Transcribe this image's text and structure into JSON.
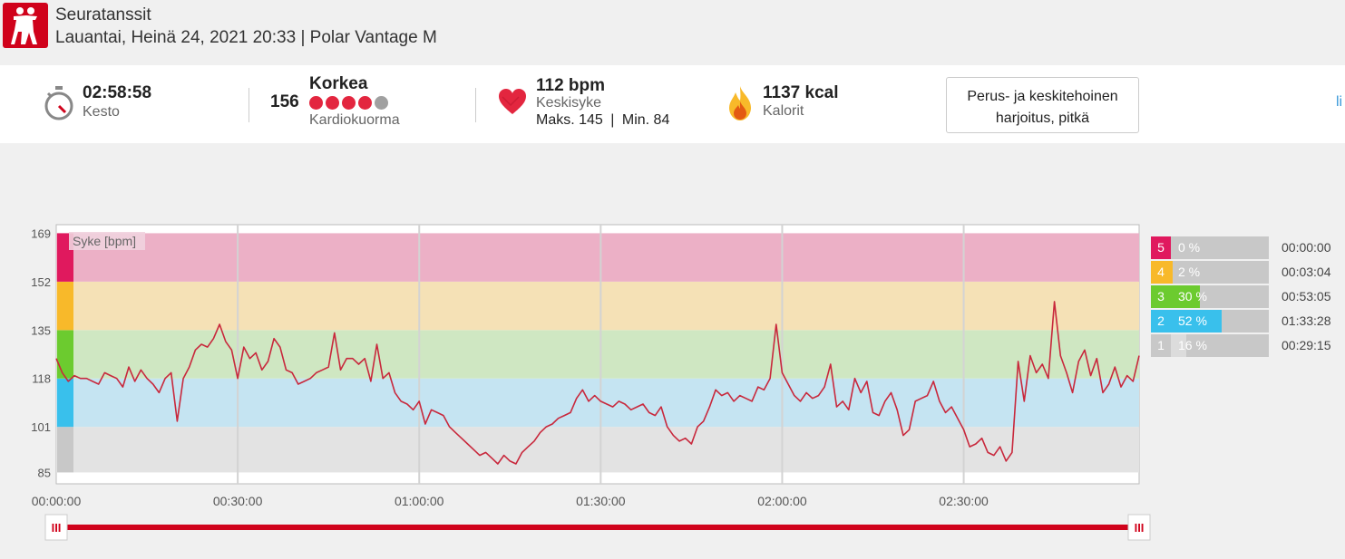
{
  "header": {
    "title": "Seuratanssit",
    "subtitle": "Lauantai, Heinä 24, 2021 20:33 | Polar Vantage M"
  },
  "summary": {
    "duration": {
      "value": "02:58:58",
      "label": "Kesto"
    },
    "load": {
      "number": "156",
      "level": "Korkea",
      "label": "Kardiokuorma",
      "dots_filled": 4,
      "dots_total": 5
    },
    "heart_rate": {
      "value": "112 bpm",
      "label": "Keskisyke",
      "max": "Maks. 145",
      "sep": "|",
      "min": "Min. 84"
    },
    "calories": {
      "value": "1137 kcal",
      "label": "Kalorit"
    },
    "training_benefit": "Perus- ja keskitehoinen harjoitus, pitkä",
    "edge_text": "li"
  },
  "colors": {
    "accent": "#d0021b",
    "line": "#c8283c",
    "zone5": "#e0195e",
    "zone4": "#f8b92a",
    "zone3": "#6ccb2f",
    "zone2": "#39c0ec",
    "zone1": "#c8c8c8"
  },
  "chart_data": {
    "type": "line",
    "title": "",
    "series_label": "Syke [bpm]",
    "x_ticks": [
      "00:00:00",
      "00:30:00",
      "01:00:00",
      "01:30:00",
      "02:00:00",
      "02:30:00"
    ],
    "x_tick_minutes": [
      0,
      30,
      60,
      90,
      120,
      150
    ],
    "xlim_minutes": [
      0,
      179
    ],
    "y_ticks": [
      85,
      101,
      118,
      135,
      152,
      169
    ],
    "ylim": [
      81,
      172
    ],
    "zone_bounds": [
      [
        85,
        101
      ],
      [
        101,
        118
      ],
      [
        118,
        135
      ],
      [
        135,
        152
      ],
      [
        152,
        169
      ]
    ],
    "series": [
      {
        "x": [
          0,
          1,
          2,
          3,
          4,
          5,
          6,
          7,
          8,
          9,
          10,
          11,
          12,
          13,
          14,
          15,
          16,
          17,
          18,
          19,
          20,
          21,
          22,
          23,
          24,
          25,
          26,
          27,
          28,
          29,
          30,
          31,
          32,
          33,
          34,
          35,
          36,
          37,
          38,
          39,
          40,
          41,
          42,
          43,
          44,
          45,
          46,
          47,
          48,
          49,
          50,
          51,
          52,
          53,
          54,
          55,
          56,
          57,
          58,
          59,
          60,
          61,
          62,
          63,
          64,
          65,
          66,
          67,
          68,
          69,
          70,
          71,
          72,
          73,
          74,
          75,
          76,
          77,
          78,
          79,
          80,
          81,
          82,
          83,
          84,
          85,
          86,
          87,
          88,
          89,
          90,
          91,
          92,
          93,
          94,
          95,
          96,
          97,
          98,
          99,
          100,
          101,
          102,
          103,
          104,
          105,
          106,
          107,
          108,
          109,
          110,
          111,
          112,
          113,
          114,
          115,
          116,
          117,
          118,
          119,
          120,
          121,
          122,
          123,
          124,
          125,
          126,
          127,
          128,
          129,
          130,
          131,
          132,
          133,
          134,
          135,
          136,
          137,
          138,
          139,
          140,
          141,
          142,
          143,
          144,
          145,
          146,
          147,
          148,
          149,
          150,
          151,
          152,
          153,
          154,
          155,
          156,
          157,
          158,
          159,
          160,
          161,
          162,
          163,
          164,
          165,
          166,
          167,
          168,
          169,
          170,
          171,
          172,
          173,
          174,
          175,
          176,
          177,
          178,
          179
        ],
        "y": [
          125,
          120,
          117,
          119,
          118,
          118,
          117,
          116,
          120,
          119,
          118,
          115,
          122,
          117,
          121,
          118,
          116,
          113,
          118,
          120,
          103,
          118,
          122,
          128,
          130,
          129,
          132,
          137,
          131,
          128,
          118,
          129,
          125,
          127,
          121,
          124,
          132,
          129,
          121,
          120,
          116,
          117,
          118,
          120,
          121,
          122,
          134,
          121,
          125,
          125,
          123,
          125,
          117,
          130,
          118,
          120,
          113,
          110,
          109,
          107,
          110,
          102,
          107,
          106,
          105,
          101,
          99,
          97,
          95,
          93,
          91,
          92,
          90,
          88,
          91,
          89,
          88,
          92,
          94,
          96,
          99,
          101,
          102,
          104,
          105,
          106,
          111,
          114,
          110,
          112,
          110,
          109,
          108,
          110,
          109,
          107,
          108,
          109,
          106,
          105,
          108,
          101,
          98,
          96,
          97,
          95,
          101,
          103,
          108,
          114,
          112,
          113,
          110,
          112,
          111,
          110,
          115,
          114,
          118,
          137,
          120,
          116,
          112,
          110,
          113,
          111,
          112,
          115,
          123,
          108,
          110,
          107,
          118,
          113,
          117,
          106,
          105,
          110,
          113,
          107,
          98,
          100,
          110,
          111,
          112,
          117,
          110,
          106,
          108,
          104,
          100,
          94,
          95,
          97,
          92,
          91,
          94,
          89,
          92,
          124,
          110,
          126,
          120,
          123,
          118,
          145,
          126,
          120,
          113,
          124,
          128,
          119,
          125,
          113,
          116,
          122,
          115,
          119,
          117,
          126
        ]
      }
    ]
  },
  "zones": [
    {
      "num": "5",
      "pct": "0 %",
      "fraction": 0.0,
      "time": "00:00:00",
      "color": "#e0195e"
    },
    {
      "num": "4",
      "pct": "2 %",
      "fraction": 0.02,
      "time": "00:03:04",
      "color": "#f8b92a"
    },
    {
      "num": "3",
      "pct": "30 %",
      "fraction": 0.3,
      "time": "00:53:05",
      "color": "#6ccb2f"
    },
    {
      "num": "2",
      "pct": "52 %",
      "fraction": 0.52,
      "time": "01:33:28",
      "color": "#39c0ec"
    },
    {
      "num": "1",
      "pct": "16 %",
      "fraction": 0.16,
      "time": "00:29:15",
      "color": "#c8c8c8"
    }
  ],
  "slider": {
    "handle_glyph": "III"
  }
}
